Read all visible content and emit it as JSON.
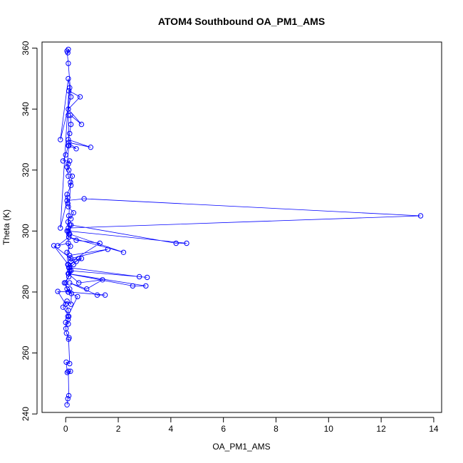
{
  "chart_data": {
    "type": "scatter",
    "title": "ATOM4 Southbound OA_PM1_AMS",
    "xlabel": "OA_PM1_AMS",
    "ylabel": "Theta (K)",
    "xlim": [
      -0.9,
      14.3
    ],
    "ylim": [
      240.5,
      362
    ],
    "xticks": [
      0,
      2,
      4,
      6,
      8,
      10,
      12,
      14
    ],
    "yticks": [
      240,
      260,
      280,
      300,
      320,
      340,
      360
    ],
    "grid": false,
    "color": "#0000ff",
    "series": [
      {
        "x": [
          0.05,
          0.08,
          0.12,
          0.1,
          0.18,
          0.06,
          0.02,
          0.15,
          0.11,
          0.13,
          0.03,
          0.01,
          0.0,
          0.1,
          0.09,
          0.12,
          -0.1,
          0.05,
          0.2,
          0.22,
          0.15,
          0.1,
          -0.05,
          0.12,
          0.15,
          0.08,
          0.05,
          0.18,
          0.1,
          -0.3,
          0.12,
          0.05,
          0.15,
          0.09,
          0.12,
          0.2,
          0.3,
          0.1,
          0.08,
          0.05,
          0.2,
          0.25,
          0.12,
          0.1,
          0.15,
          -0.1,
          0.0,
          0.1,
          0.4,
          0.12,
          0.95,
          0.1,
          0.15,
          0.2,
          0.18,
          0.6,
          0.1,
          0.55,
          0.12,
          -0.2,
          0.08,
          0.05,
          0.7,
          13.5,
          0.1,
          0.12,
          0.2,
          4.2,
          4.6,
          0.1,
          0.15,
          2.2,
          0.12,
          0.4,
          1.3,
          0.2,
          0.15,
          1.6,
          0.2,
          -0.45,
          0.1,
          0.6,
          0.5,
          0.4,
          0.3,
          0.12,
          2.8,
          3.1,
          0.15,
          0.1,
          3.05,
          2.55,
          0.1,
          0.5,
          1.4,
          0.8,
          0.15,
          1.2,
          1.5,
          0.1,
          0.45,
          0.08,
          0.1,
          0.0,
          -0.3,
          0.1,
          0.05,
          0.0,
          0.2,
          0.12,
          0.1,
          0.18,
          0.1,
          0.05,
          0.12,
          0.1,
          0.15,
          0.1,
          -0.2,
          0.2,
          0.1,
          0.05,
          0.08,
          0.1
        ],
        "y": [
          243,
          245,
          246,
          254,
          254,
          253.6,
          257,
          256.5,
          264.5,
          265,
          266.5,
          268,
          270,
          269.5,
          271,
          272,
          275,
          277,
          276,
          279.5,
          281,
          280,
          283,
          285,
          288,
          289,
          293,
          295,
          296,
          295.2,
          298,
          300,
          302,
          303,
          305,
          304,
          306,
          308,
          309,
          312,
          315,
          318,
          320,
          322,
          323,
          323,
          325,
          328,
          327,
          329,
          327.5,
          330,
          332,
          335,
          338,
          335,
          340,
          344,
          346,
          301,
          311,
          310,
          310.6,
          305,
          301,
          299,
          302,
          296,
          296,
          300,
          299,
          293,
          298,
          297,
          296,
          290,
          292,
          294,
          291,
          295.2,
          289,
          291,
          291,
          290,
          289,
          288,
          285,
          284.8,
          287,
          286,
          282,
          282,
          286,
          283,
          284,
          281,
          283,
          279,
          279,
          280,
          278.5,
          272,
          274,
          276,
          280.2,
          280,
          281,
          283,
          287,
          286,
          300,
          316,
          318,
          321,
          328,
          338,
          347,
          350,
          330,
          344,
          355,
          359,
          358.5,
          359.6
        ]
      }
    ]
  }
}
